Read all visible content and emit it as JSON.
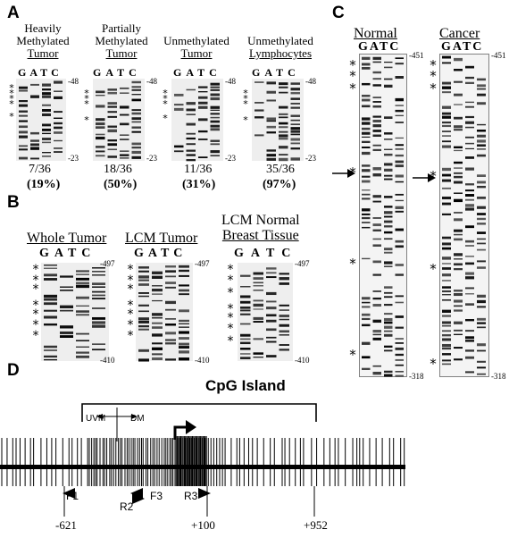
{
  "panels": {
    "A": {
      "letter": "A",
      "gels": [
        {
          "title_lines": [
            "Heavily",
            "Methylated",
            "Tumor"
          ],
          "fraction": "7/36",
          "percent": "(19%)",
          "top": "-48",
          "bottom": "-23"
        },
        {
          "title_lines": [
            "Partially",
            "Methylated",
            "Tumor"
          ],
          "fraction": "18/36",
          "percent": "(50%)",
          "top": "-48",
          "bottom": "-23"
        },
        {
          "title_lines": [
            "Unmethylated",
            "Tumor"
          ],
          "fraction": "11/36",
          "percent": "(31%)",
          "top": "-48",
          "bottom": "-23"
        },
        {
          "title_lines": [
            "Unmethylated",
            "Lymphocytes"
          ],
          "fraction": "35/36",
          "percent": "(97%)",
          "top": "-48",
          "bottom": "-23"
        }
      ],
      "lanes": "GATC"
    },
    "B": {
      "letter": "B",
      "gels": [
        {
          "title_lines": [
            "Whole Tumor"
          ],
          "top": "-497",
          "bottom": "-410"
        },
        {
          "title_lines": [
            "LCM Tumor"
          ],
          "top": "-497",
          "bottom": "-410"
        },
        {
          "title_lines": [
            "LCM Normal",
            "Breast Tissue"
          ],
          "top": "-497",
          "bottom": "-410"
        }
      ],
      "lanes": "GATC"
    },
    "C": {
      "letter": "C",
      "gels": [
        {
          "title": "Normal",
          "top": "-451",
          "bottom": "-318"
        },
        {
          "title": "Cancer",
          "top": "-451",
          "bottom": "-318"
        }
      ],
      "lanes": "GATC"
    },
    "D": {
      "letter": "D",
      "island_label": "CpG Island",
      "uvm": "UVM",
      "dm": "DM",
      "primers": [
        "F1",
        "F3",
        "R2",
        "R3"
      ],
      "positions": [
        "-621",
        "+100",
        "+952"
      ]
    }
  }
}
